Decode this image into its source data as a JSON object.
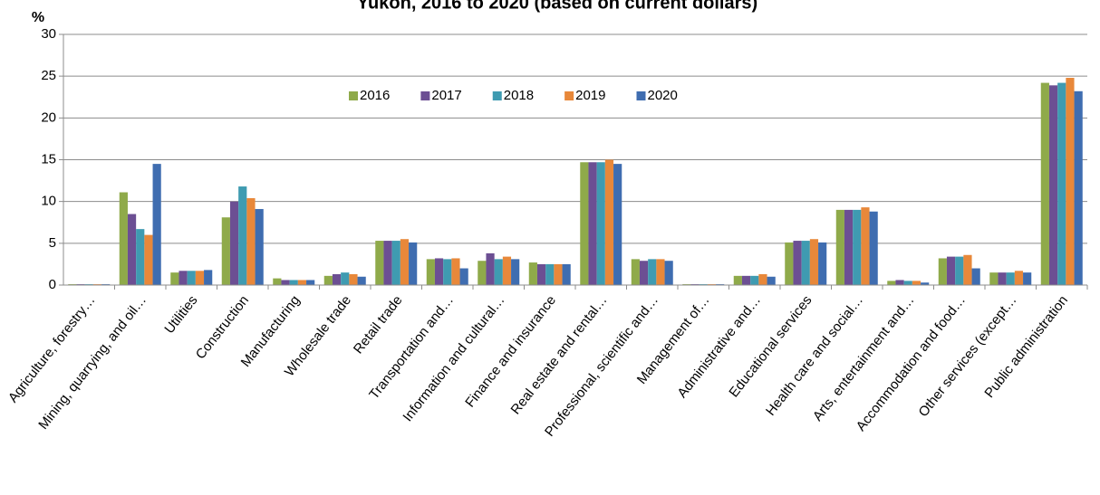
{
  "chart_data": {
    "type": "bar",
    "title": "Yukon, 2016 to 2020 (based on current dollars)",
    "y_label": "%",
    "categories": [
      "Agriculture, forestry…",
      "Mining, quarrying, and oil…",
      "Utilities",
      "Construction",
      "Manufacturing",
      "Wholesale trade",
      "Retail trade",
      "Transportation and…",
      "Information and cultural…",
      "Finance and insurance",
      "Real estate and rental…",
      "Professional, scientific and…",
      "Management of…",
      "Administrative and…",
      "Educational services",
      "Health care and social…",
      "Arts, entertainment and…",
      "Accommodation and food…",
      "Other services (except…",
      "Public administration"
    ],
    "series": [
      {
        "name": "2016",
        "color": "#8faa4a",
        "values": [
          0.1,
          11.1,
          1.5,
          8.1,
          0.8,
          1.1,
          5.3,
          3.1,
          2.9,
          2.7,
          14.7,
          3.1,
          0.1,
          1.1,
          5.1,
          9.0,
          0.5,
          3.2,
          1.5,
          24.2
        ]
      },
      {
        "name": "2017",
        "color": "#6c4f93",
        "values": [
          0.1,
          8.5,
          1.7,
          10.0,
          0.6,
          1.3,
          5.3,
          3.2,
          3.8,
          2.5,
          14.7,
          2.9,
          0.1,
          1.1,
          5.3,
          9.0,
          0.6,
          3.4,
          1.5,
          23.9
        ]
      },
      {
        "name": "2018",
        "color": "#3f9bb1",
        "values": [
          0.1,
          6.7,
          1.7,
          11.8,
          0.6,
          1.5,
          5.3,
          3.1,
          3.1,
          2.5,
          14.7,
          3.1,
          0.1,
          1.1,
          5.3,
          9.0,
          0.5,
          3.4,
          1.5,
          24.2
        ]
      },
      {
        "name": "2019",
        "color": "#e8883a",
        "values": [
          0.1,
          6.0,
          1.7,
          10.4,
          0.6,
          1.3,
          5.5,
          3.2,
          3.4,
          2.5,
          15.0,
          3.1,
          0.1,
          1.3,
          5.5,
          9.3,
          0.5,
          3.6,
          1.7,
          24.8
        ]
      },
      {
        "name": "2020",
        "color": "#3f6db0",
        "values": [
          0.1,
          14.5,
          1.8,
          9.1,
          0.6,
          1.0,
          5.1,
          2.0,
          3.1,
          2.5,
          14.5,
          2.9,
          0.1,
          1.0,
          5.1,
          8.8,
          0.3,
          2.0,
          1.5,
          23.2
        ]
      }
    ],
    "ylim": [
      0,
      30
    ],
    "yticks": [
      0,
      5,
      10,
      15,
      20,
      25,
      30
    ],
    "grid": true,
    "legend": "top"
  }
}
